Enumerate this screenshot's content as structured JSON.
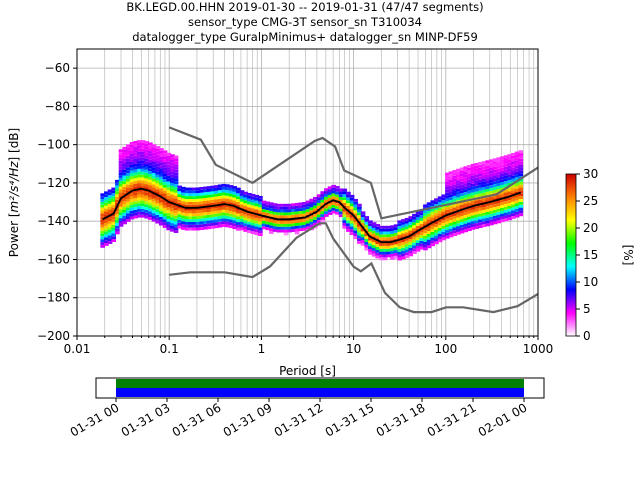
{
  "title_lines": [
    "BK.LEGD.00.HHN   2019-01-30 -- 2019-01-31  (47/47 segments)",
    "sensor_type CMG-3T sensor_sn T310034",
    "datalogger_type GuralpMinimus+ datalogger_sn MINP-DF59"
  ],
  "chart_data": [
    {
      "type": "heatmap",
      "xlabel": "Period [s]",
      "ylabel_prefix": "Power [",
      "ylabel_math": "m²/s⁴/Hz",
      "ylabel_suffix": "] [dB]",
      "x_scale": "log",
      "xlim": [
        0.01,
        1000
      ],
      "ylim": [
        -200,
        -50
      ],
      "x_ticks": [
        0.01,
        0.1,
        1,
        10,
        100,
        1000
      ],
      "x_tick_labels": [
        "0.01",
        "0.1",
        "1",
        "10",
        "100",
        "1000"
      ],
      "y_ticks": [
        -200,
        -180,
        -160,
        -140,
        -120,
        -100,
        -80,
        -60
      ],
      "y_tick_labels": [
        "−200",
        "−180",
        "−160",
        "−140",
        "−120",
        "−100",
        "−80",
        "−60"
      ],
      "grid": true,
      "colorbar": {
        "label": "[%]",
        "range": [
          0,
          30
        ],
        "ticks": [
          0,
          5,
          10,
          15,
          20,
          25,
          30
        ],
        "tick_labels": [
          "0",
          "5",
          "10",
          "15",
          "20",
          "25",
          "30"
        ],
        "colormap": [
          "#ffffff",
          "#ff00ff",
          "#0000ff",
          "#00ffff",
          "#00ff00",
          "#ffff00",
          "#ff8000",
          "#cc0000"
        ]
      },
      "mode_curve": [
        [
          0.019,
          -139
        ],
        [
          0.025,
          -136
        ],
        [
          0.03,
          -128
        ],
        [
          0.04,
          -124
        ],
        [
          0.05,
          -123
        ],
        [
          0.06,
          -124
        ],
        [
          0.08,
          -127
        ],
        [
          0.1,
          -130
        ],
        [
          0.15,
          -133
        ],
        [
          0.2,
          -133
        ],
        [
          0.3,
          -132
        ],
        [
          0.4,
          -131
        ],
        [
          0.5,
          -132
        ],
        [
          0.7,
          -135
        ],
        [
          1,
          -137
        ],
        [
          1.5,
          -139
        ],
        [
          2,
          -139
        ],
        [
          3,
          -138
        ],
        [
          4,
          -135
        ],
        [
          5,
          -131
        ],
        [
          6,
          -129
        ],
        [
          7,
          -130
        ],
        [
          8,
          -133
        ],
        [
          10,
          -137
        ],
        [
          12,
          -142
        ],
        [
          15,
          -148
        ],
        [
          20,
          -151
        ],
        [
          25,
          -151
        ],
        [
          30,
          -150
        ],
        [
          40,
          -148
        ],
        [
          50,
          -145
        ],
        [
          70,
          -141
        ],
        [
          100,
          -137
        ],
        [
          150,
          -134
        ],
        [
          200,
          -132
        ],
        [
          300,
          -130
        ],
        [
          500,
          -127
        ],
        [
          650,
          -125
        ]
      ],
      "nhnm": [
        [
          0.1,
          -91
        ],
        [
          0.22,
          -97.4
        ],
        [
          0.32,
          -110.5
        ],
        [
          0.8,
          -120
        ],
        [
          3.8,
          -98
        ],
        [
          4.6,
          -96.5
        ],
        [
          6.3,
          -101
        ],
        [
          7.9,
          -113.5
        ],
        [
          15.4,
          -120
        ],
        [
          20,
          -138.5
        ],
        [
          354.8,
          -126
        ],
        [
          1000,
          -112
        ]
      ],
      "nlnm": [
        [
          0.1,
          -168
        ],
        [
          0.17,
          -166.7
        ],
        [
          0.4,
          -166.7
        ],
        [
          0.8,
          -169.2
        ],
        [
          1.24,
          -163.7
        ],
        [
          2.4,
          -148.6
        ],
        [
          4.3,
          -141.1
        ],
        [
          5,
          -141.1
        ],
        [
          6,
          -149
        ],
        [
          10,
          -163.8
        ],
        [
          12,
          -166.2
        ],
        [
          15.6,
          -162.1
        ],
        [
          21.9,
          -177.5
        ],
        [
          31.6,
          -185
        ],
        [
          45,
          -187.5
        ],
        [
          70,
          -187.5
        ],
        [
          101,
          -185
        ],
        [
          154,
          -185
        ],
        [
          328,
          -187.5
        ],
        [
          600,
          -184.4
        ],
        [
          1000,
          -178
        ]
      ]
    },
    {
      "type": "timeline",
      "x_tick_labels": [
        "01-31 00",
        "01-31 03",
        "01-31 06",
        "01-31 09",
        "01-31 12",
        "01-31 15",
        "01-31 18",
        "01-31 21",
        "02-01 00"
      ],
      "segments_color_top": "#008000",
      "segments_color_bottom": "#0000ff"
    }
  ]
}
